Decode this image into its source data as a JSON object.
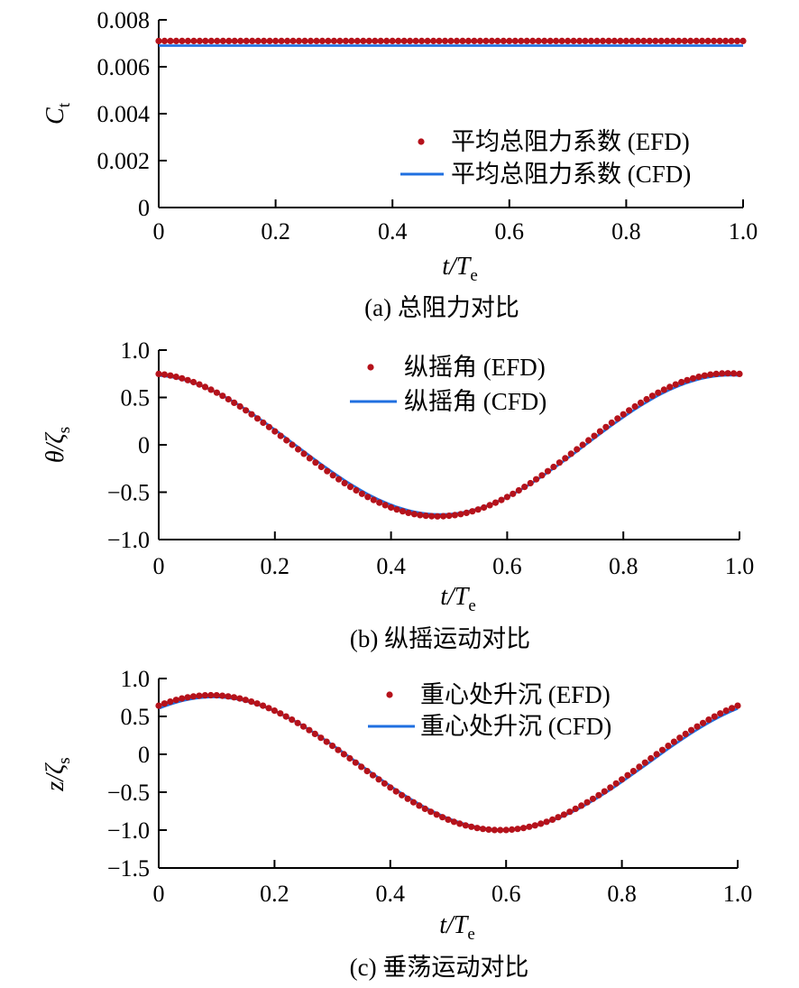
{
  "colors": {
    "efd": "#b5121b",
    "cfd": "#1f6fe0",
    "axis": "#000000"
  },
  "chart_data": [
    {
      "type": "scatter",
      "caption": "(a) 总阻力对比",
      "xlabel": "t/T",
      "xlabel_sub": "e",
      "ylabel": "C",
      "ylabel_sub": "t",
      "xlim": [
        0,
        1.0
      ],
      "ylim": [
        0,
        0.008
      ],
      "x_ticks": [
        "0",
        "0.2",
        "0.4",
        "0.6",
        "0.8",
        "1.0"
      ],
      "y_ticks": [
        "0",
        "0.002",
        "0.004",
        "0.006",
        "0.008"
      ],
      "legend_position": "bottom-right",
      "series": [
        {
          "name": "平均总阻力系数 (EFD)",
          "style": "markers",
          "x_range": [
            0,
            1.0
          ],
          "count": 101,
          "y_constant": 0.0071
        },
        {
          "name": "平均总阻力系数 (CFD)",
          "style": "line",
          "x_range": [
            0,
            1.0
          ],
          "count": 101,
          "y_constant": 0.0069
        }
      ]
    },
    {
      "type": "scatter",
      "caption": "(b) 纵摇运动对比",
      "xlabel": "t/T",
      "xlabel_sub": "e",
      "ylabel": "θ/ζ",
      "ylabel_sub": "s",
      "xlim": [
        0,
        1.0
      ],
      "ylim": [
        -1.0,
        1.0
      ],
      "x_ticks": [
        "0",
        "0.2",
        "0.4",
        "0.6",
        "0.8",
        "1.0"
      ],
      "y_ticks": [
        "−1.0",
        "−0.5",
        "0",
        "0.5",
        "1.0"
      ],
      "legend_position": "top-center",
      "series": [
        {
          "name": "纵摇角 (EFD)",
          "style": "markers",
          "x_range": [
            0,
            1.0
          ],
          "count": 101,
          "amplitude": 0.755,
          "x_min_at": 0.48,
          "offset": 0
        },
        {
          "name": "纵摇角 (CFD)",
          "style": "line",
          "x_range": [
            0,
            1.0
          ],
          "count": 101,
          "amplitude": 0.735,
          "x_min_at": 0.485,
          "offset": 0
        }
      ]
    },
    {
      "type": "scatter",
      "caption": "(c) 垂荡运动对比",
      "xlabel": "t/T",
      "xlabel_sub": "e",
      "ylabel": "z/ζ",
      "ylabel_sub": "s",
      "xlim": [
        0,
        1.0
      ],
      "ylim": [
        -1.5,
        1.0
      ],
      "x_ticks": [
        "0",
        "0.2",
        "0.4",
        "0.6",
        "0.8",
        "1.0"
      ],
      "y_ticks": [
        "−1.5",
        "−1.0",
        "−0.5",
        "0",
        "0.5",
        "1.0"
      ],
      "legend_position": "top-right",
      "series": [
        {
          "name": "重心处升沉 (EFD)",
          "style": "markers",
          "x_range": [
            0,
            1.0
          ],
          "count": 101,
          "amplitude": 0.89,
          "x_min_at": 0.59,
          "offset": -0.11
        },
        {
          "name": "重心处升沉 (CFD)",
          "style": "line",
          "x_range": [
            0,
            1.0
          ],
          "count": 101,
          "amplitude": 0.875,
          "x_min_at": 0.595,
          "offset": -0.12
        }
      ]
    }
  ]
}
